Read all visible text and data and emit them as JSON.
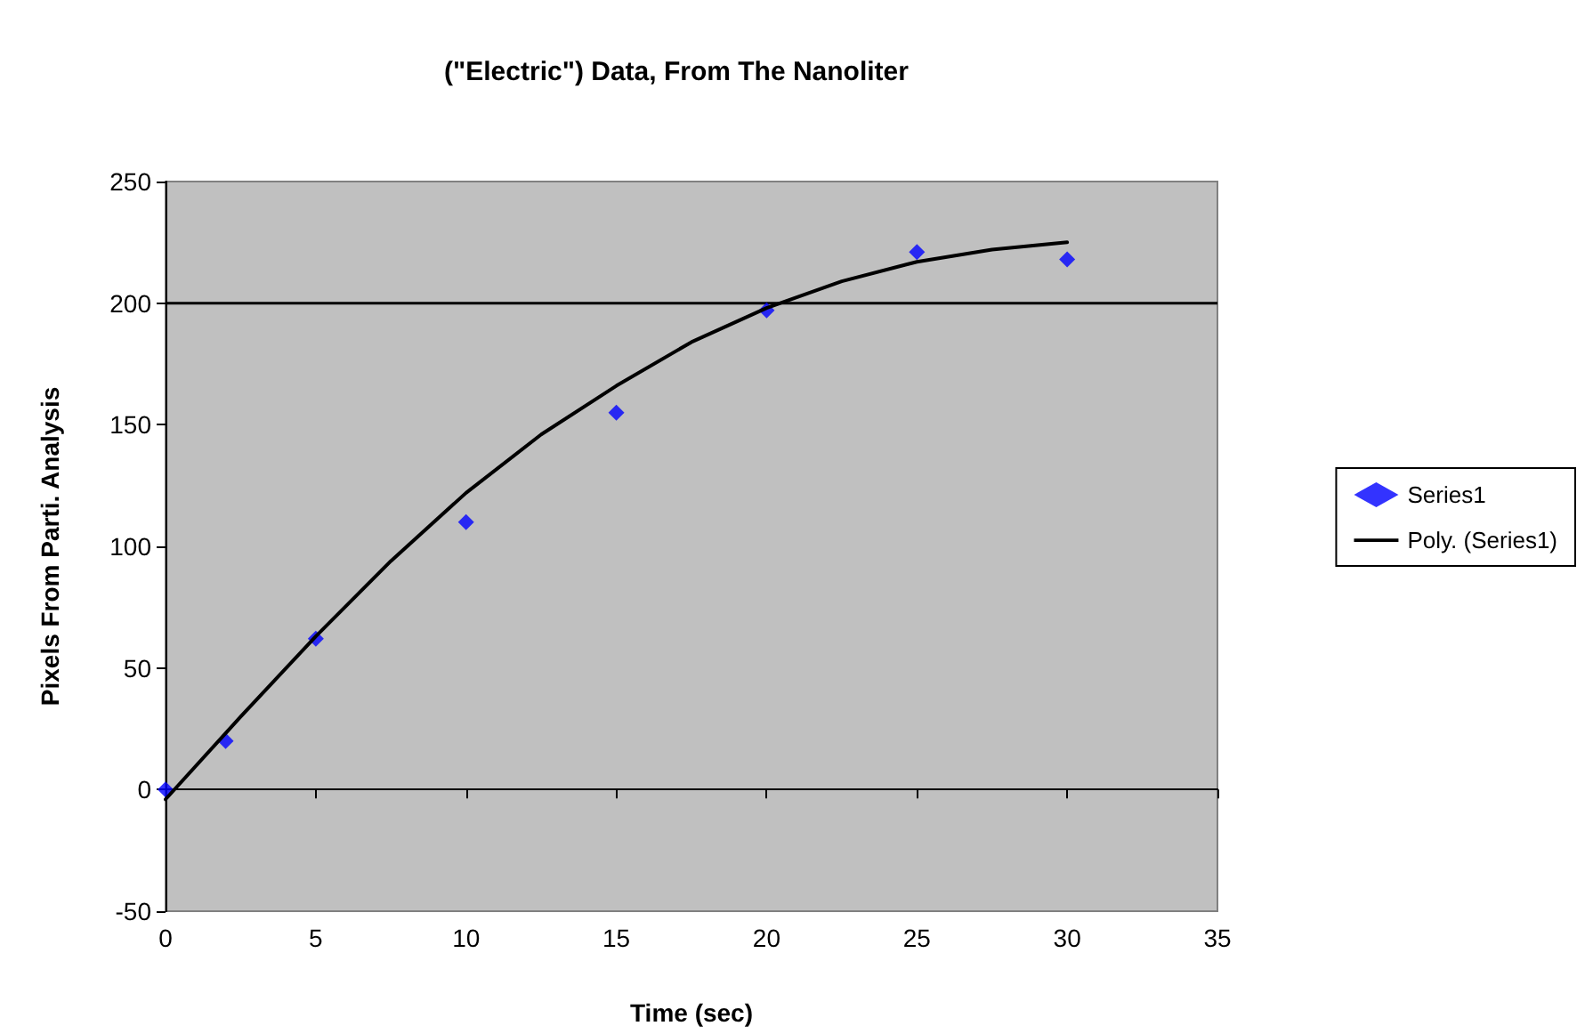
{
  "chart_data": {
    "type": "scatter",
    "title": "(\"Electric\") Data, From The Nanoliter",
    "xlabel": "Time (sec)",
    "ylabel": "Pixels From Parti. Analysis",
    "series": [
      {
        "name": "Series1",
        "color": "#0000ff",
        "marker": "diamond",
        "x": [
          0,
          2,
          5,
          10,
          15,
          20,
          25,
          30
        ],
        "values": [
          0,
          20,
          62,
          110,
          155,
          197,
          221,
          218
        ]
      },
      {
        "name": "Poly. (Series1)",
        "type": "line",
        "color": "#000000",
        "marker": "none",
        "line_style": "solid",
        "x": [
          0,
          2.5,
          5,
          7.5,
          10,
          12.5,
          15,
          17.5,
          20,
          22.5,
          25,
          27.5,
          30
        ],
        "values": [
          -4,
          30,
          63,
          94,
          122,
          146,
          166,
          184,
          198,
          209,
          217,
          222,
          225
        ]
      }
    ],
    "xlim": [
      0,
      35
    ],
    "xticks": [
      0,
      5,
      10,
      15,
      20,
      25,
      30,
      35
    ],
    "ylim": [
      -50,
      250
    ],
    "yticks": [
      -50,
      0,
      50,
      100,
      150,
      200,
      250
    ],
    "ref_lines": [
      {
        "axis": "y",
        "value": 200,
        "color": "#000000"
      }
    ],
    "grid": false,
    "legend": "right"
  }
}
